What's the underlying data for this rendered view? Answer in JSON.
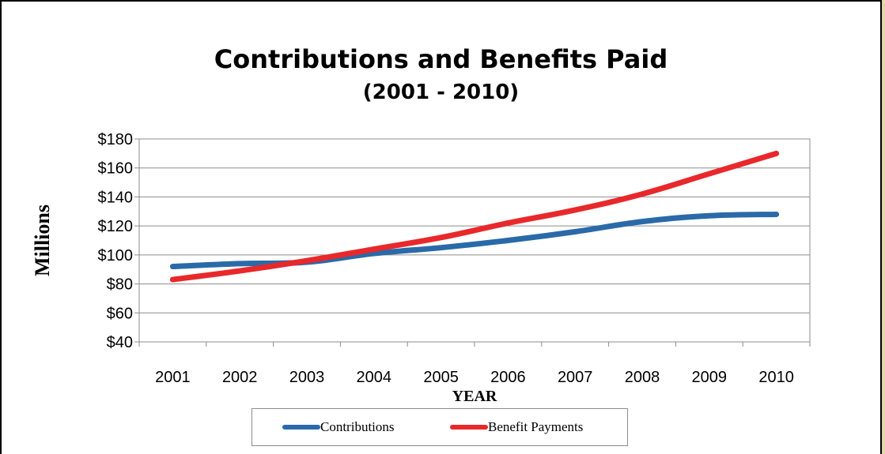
{
  "title": "Contributions and Benefits Paid",
  "subtitle": "(2001 - 2010)",
  "chart_data": {
    "type": "line",
    "title": "Contributions and Benefits Paid",
    "subtitle": "(2001 - 2010)",
    "xlabel": "YEAR",
    "ylabel": "Millions",
    "categories": [
      "2001",
      "2002",
      "2003",
      "2004",
      "2005",
      "2006",
      "2007",
      "2008",
      "2009",
      "2010"
    ],
    "ylim": [
      40,
      180
    ],
    "yticks": [
      40,
      60,
      80,
      100,
      120,
      140,
      160,
      180
    ],
    "ytick_labels": [
      "$40",
      "$60",
      "$80",
      "$100",
      "$120",
      "$140",
      "$160",
      "$180"
    ],
    "grid": true,
    "legend_position": "bottom",
    "series": [
      {
        "name": "Contributions",
        "color": "#2a6aa8",
        "values": [
          92,
          94,
          95,
          101,
          105,
          110,
          116,
          123,
          127,
          128
        ]
      },
      {
        "name": "Benefit Payments",
        "color": "#e8282b",
        "values": [
          83,
          89,
          96,
          104,
          112,
          122,
          131,
          142,
          156,
          170
        ]
      }
    ]
  }
}
